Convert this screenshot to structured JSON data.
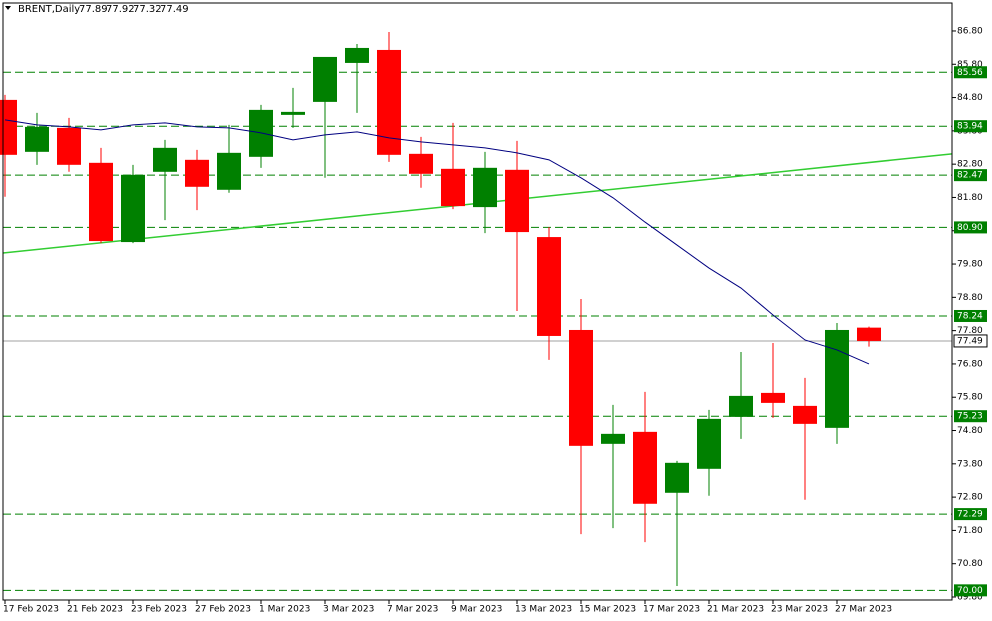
{
  "chart_data": {
    "type": "candlestick",
    "symbol": "BRENT,Daily",
    "header_ohlc": [
      77.89,
      77.92,
      77.32,
      77.49
    ],
    "categories": [
      "17 Feb 2023",
      null,
      "21 Feb 2023",
      null,
      "23 Feb 2023",
      null,
      "27 Feb 2023",
      null,
      "1 Mar 2023",
      null,
      "3 Mar 2023",
      null,
      "7 Mar 2023",
      null,
      "9 Mar 2023",
      null,
      "13 Mar 2023",
      null,
      "15 Mar 2023",
      null,
      "17 Mar 2023",
      null,
      "21 Mar 2023",
      null,
      "23 Mar 2023",
      null,
      "27 Mar 2023",
      null
    ],
    "open": [
      84.73,
      83.17,
      83.89,
      82.84,
      80.46,
      82.57,
      82.93,
      82.03,
      83.02,
      84.28,
      84.67,
      85.84,
      86.23,
      83.11,
      82.66,
      81.51,
      82.63,
      80.61,
      77.82,
      74.4,
      74.76,
      72.93,
      73.65,
      75.21,
      75.93,
      75.54,
      74.88,
      77.89
    ],
    "high": [
      84.88,
      84.34,
      84.19,
      83.29,
      82.78,
      83.53,
      83.23,
      83.98,
      84.58,
      85.09,
      86.02,
      86.41,
      86.77,
      83.62,
      84.04,
      83.17,
      83.5,
      80.91,
      78.75,
      75.57,
      75.96,
      73.89,
      75.42,
      77.16,
      77.43,
      76.38,
      78.03,
      77.92
    ],
    "low": [
      81.82,
      82.78,
      82.57,
      80.43,
      80.43,
      81.12,
      81.42,
      81.94,
      82.69,
      83.89,
      82.39,
      84.34,
      82.87,
      82.09,
      81.45,
      80.73,
      78.39,
      76.92,
      71.69,
      71.87,
      71.45,
      70.13,
      72.84,
      74.55,
      75.18,
      72.72,
      74.4,
      77.32
    ],
    "close": [
      83.08,
      83.92,
      82.78,
      80.49,
      82.48,
      83.29,
      82.12,
      83.14,
      84.43,
      84.37,
      86.02,
      86.29,
      83.08,
      82.51,
      81.54,
      82.69,
      80.76,
      77.64,
      74.34,
      74.7,
      72.6,
      73.83,
      75.15,
      75.84,
      75.63,
      75.0,
      77.82,
      77.49
    ],
    "bull_color": "#008000",
    "bear_color": "#ff0000",
    "moving_average": {
      "color": "#000080",
      "values": [
        84.13,
        83.98,
        83.92,
        83.83,
        83.98,
        84.04,
        83.92,
        83.89,
        83.74,
        83.53,
        83.68,
        83.77,
        83.59,
        83.47,
        83.38,
        83.29,
        83.14,
        82.93,
        82.39,
        81.79,
        81.06,
        80.37,
        79.68,
        79.08,
        78.27,
        77.52,
        77.22,
        76.8
      ]
    },
    "trendline": {
      "color": "#32cd32",
      "start": 80.13,
      "end": 83.11
    },
    "levels": {
      "color": "#008000",
      "values": [
        85.56,
        83.94,
        82.47,
        80.9,
        78.24,
        75.23,
        72.29,
        70.0
      ],
      "value_labels": [
        "85.56",
        "83.94",
        "82.47",
        "80.90",
        "78.24",
        "75.23",
        "72.29",
        "70.00"
      ]
    },
    "current_price": {
      "value": 77.49,
      "label": "77.49"
    },
    "ylim": [
      69.71,
      87.64
    ],
    "yticks": [
      {
        "value": 86.8,
        "label": "86.80"
      },
      {
        "value": 85.8,
        "label": "85.80"
      },
      {
        "value": 84.8,
        "label": "84.80"
      },
      {
        "value": 83.8,
        "label": "83.80"
      },
      {
        "value": 82.8,
        "label": "82.80"
      },
      {
        "value": 81.8,
        "label": "81.80"
      },
      {
        "value": 80.8,
        "label": "80.80"
      },
      {
        "value": 79.8,
        "label": "79.80"
      },
      {
        "value": 78.8,
        "label": "78.80"
      },
      {
        "value": 77.8,
        "label": "77.80"
      },
      {
        "value": 76.8,
        "label": "76.80"
      },
      {
        "value": 75.8,
        "label": "75.80"
      },
      {
        "value": 74.8,
        "label": "74.80"
      },
      {
        "value": 73.8,
        "label": "73.80"
      },
      {
        "value": 72.8,
        "label": "72.80"
      },
      {
        "value": 71.8,
        "label": "71.80"
      },
      {
        "value": 70.8,
        "label": "70.80"
      },
      {
        "value": 69.8,
        "label": "69.80"
      }
    ]
  }
}
